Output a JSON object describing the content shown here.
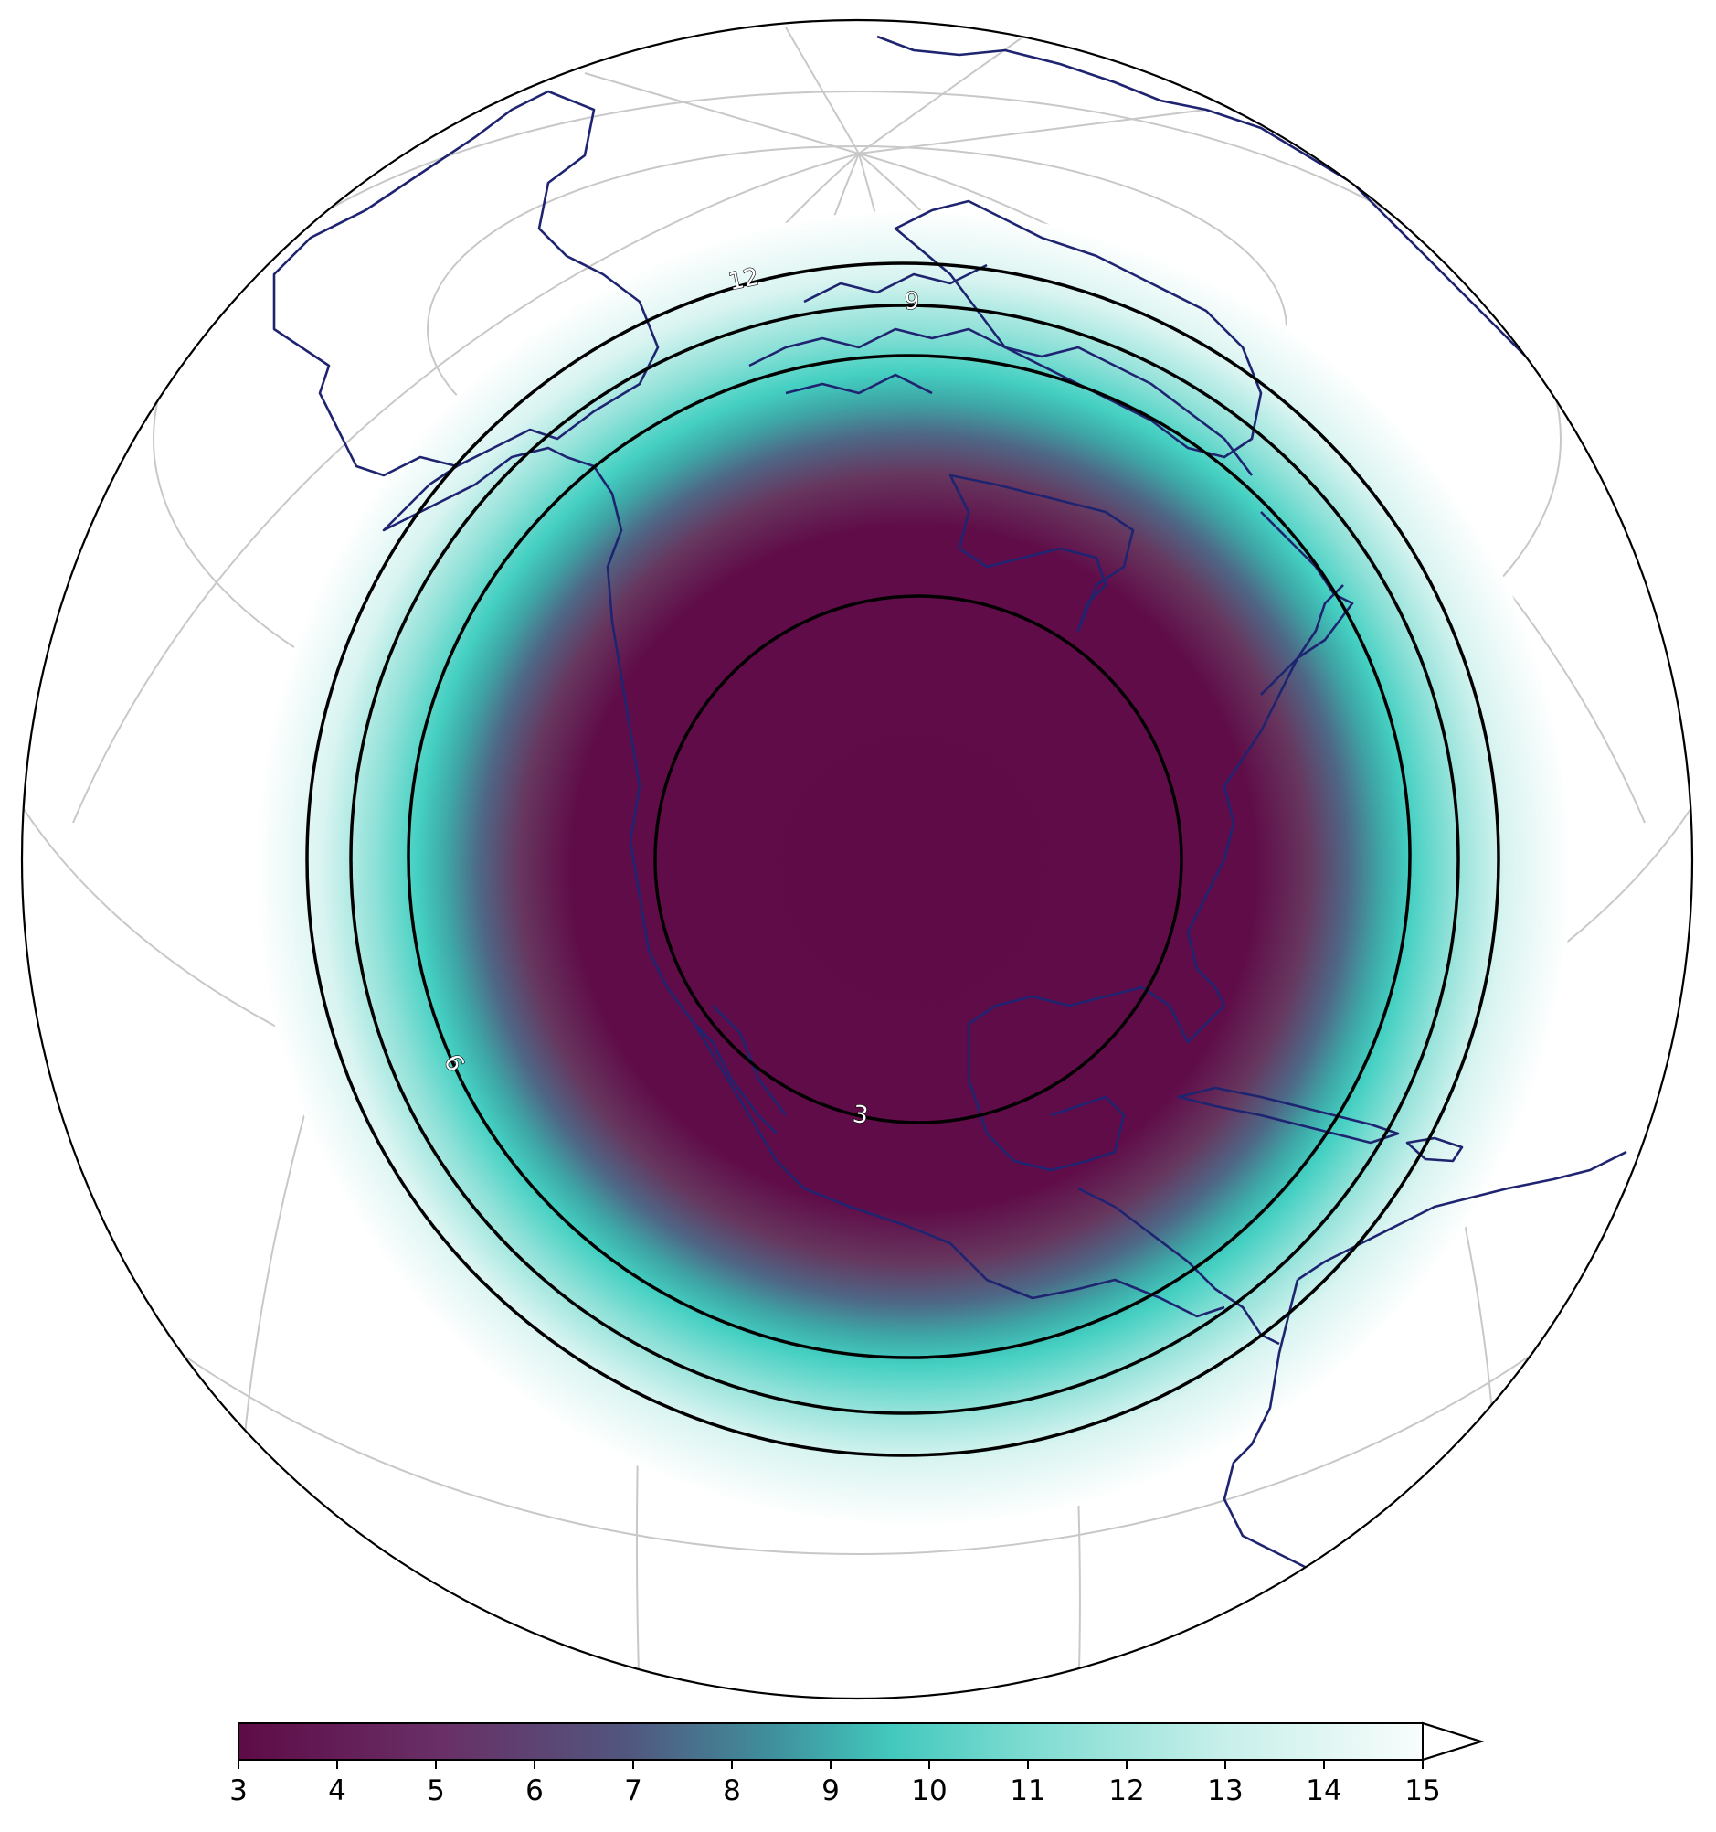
{
  "map": {
    "projection": "orthographic",
    "field_colormap": [
      "#5e0b47",
      "#6a3a6a",
      "#4d6b8a",
      "#3fa9a8",
      "#42cfc0",
      "#9ee6dd",
      "#e7f8f6",
      "#ffffff"
    ],
    "coastline_color": "#1f2470",
    "graticule_color": "#c8c8c8"
  },
  "contours": {
    "levels": [
      3,
      6,
      9,
      12
    ],
    "labels": [
      "3",
      "6",
      "9",
      "12"
    ]
  },
  "colorbar": {
    "ticks": [
      "3",
      "4",
      "5",
      "6",
      "7",
      "8",
      "9",
      "10",
      "11",
      "12",
      "13",
      "14",
      "15"
    ],
    "range": [
      3,
      15
    ],
    "extend": "max"
  }
}
